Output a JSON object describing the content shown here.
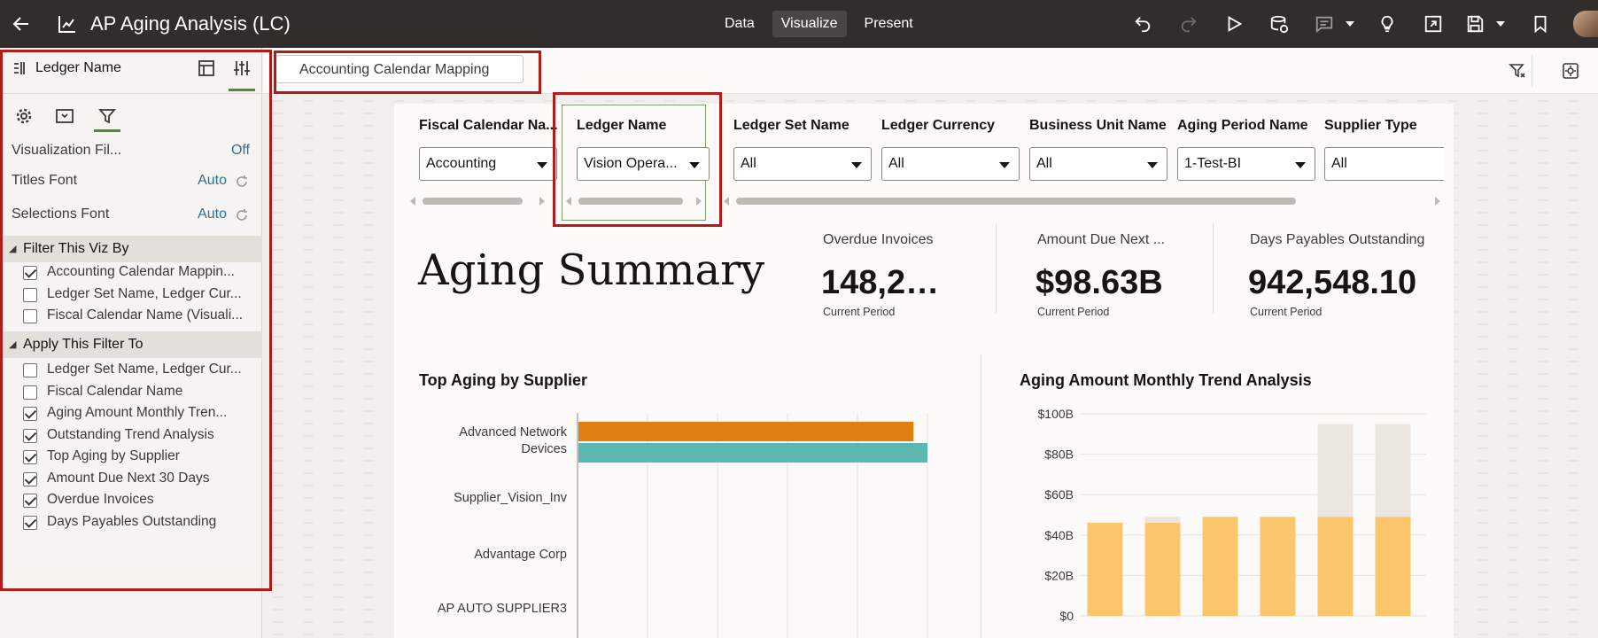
{
  "topbar": {
    "title": "AP Aging Analysis (LC)",
    "tabs": [
      "Data",
      "Visualize",
      "Present"
    ],
    "active_tab": "Visualize",
    "icons": [
      "back-arrow-icon",
      "workbook-icon",
      "undo-icon",
      "redo-icon",
      "play-icon",
      "data-refresh-icon",
      "comment-icon",
      "lightbulb-icon",
      "export-icon",
      "save-icon",
      "bookmark-icon",
      "user-avatar"
    ]
  },
  "left_panel": {
    "header_title": "Ledger Name",
    "properties": [
      {
        "label": "Visualization Fil...",
        "value": "Off"
      },
      {
        "label": "Titles Font",
        "value": "Auto"
      },
      {
        "label": "Selections Font",
        "value": "Auto"
      }
    ],
    "section_filter_by": "Filter This Viz By",
    "filter_by_items": [
      {
        "label": "Accounting Calendar Mappin...",
        "checked": true
      },
      {
        "label": "Ledger Set Name, Ledger Cur...",
        "checked": false
      },
      {
        "label": "Fiscal Calendar Name (Visuali...",
        "checked": false
      }
    ],
    "section_apply_to": "Apply This Filter To",
    "apply_to_items": [
      {
        "label": "Ledger Set Name, Ledger Cur...",
        "checked": false
      },
      {
        "label": "Fiscal Calendar Name",
        "checked": false
      },
      {
        "label": "Aging Amount Monthly Tren...",
        "checked": true
      },
      {
        "label": "Outstanding Trend Analysis",
        "checked": true
      },
      {
        "label": "Top Aging by Supplier",
        "checked": true
      },
      {
        "label": "Amount Due Next 30 Days",
        "checked": true
      },
      {
        "label": "Overdue Invoices",
        "checked": true
      },
      {
        "label": "Days Payables Outstanding",
        "checked": true
      }
    ]
  },
  "canvas_tab": "Accounting Calendar Mapping",
  "filters": [
    {
      "label": "Fiscal Calendar Na...",
      "value": "Accounting"
    },
    {
      "label": "Ledger Name",
      "value": "Vision Opera..."
    },
    {
      "label": "Ledger Set Name",
      "value": "All"
    },
    {
      "label": "Ledger Currency",
      "value": "All"
    },
    {
      "label": "Business Unit Name",
      "value": "All"
    },
    {
      "label": "Aging Period Name",
      "value": "1-Test-BI"
    },
    {
      "label": "Supplier Type",
      "value": "All"
    }
  ],
  "summary_title": "Aging Summary",
  "kpis": [
    {
      "label": "Overdue Invoices",
      "value": "148,2…",
      "sub": "Current Period"
    },
    {
      "label": "Amount Due Next ...",
      "value": "$98.63B",
      "sub": "Current Period"
    },
    {
      "label": "Days Payables Outstanding",
      "value": "942,548.10",
      "sub": "Current Period"
    }
  ],
  "colors": {
    "accent_orange": "#e07f11",
    "accent_teal": "#5bb8b0",
    "bar_yellow": "#fbc56c",
    "bar_ghost": "#ece6e1",
    "highlight_red": "#b01c1c"
  },
  "chart_data": [
    {
      "type": "bar",
      "title": "Top Aging by Supplier",
      "orientation": "horizontal",
      "categories": [
        "Advanced Network Devices",
        "Supplier_Vision_Inv",
        "Advantage Corp",
        "AP AUTO SUPPLIER3"
      ],
      "series": [
        {
          "color": "#e07f11",
          "values": [
            0.96,
            null,
            null,
            null
          ]
        },
        {
          "color": "#5bb8b0",
          "values": [
            1.0,
            null,
            null,
            null
          ]
        }
      ]
    },
    {
      "type": "bar",
      "title": "Aging Amount Monthly Trend Analysis",
      "y_ticks": [
        "$0",
        "$20B",
        "$40B",
        "$60B",
        "$80B",
        "$100B"
      ],
      "ylim": [
        0,
        100
      ],
      "values": [
        46,
        46,
        49,
        49,
        49,
        49
      ],
      "ghost_values": [
        0,
        49,
        0,
        0,
        95,
        95
      ]
    }
  ]
}
